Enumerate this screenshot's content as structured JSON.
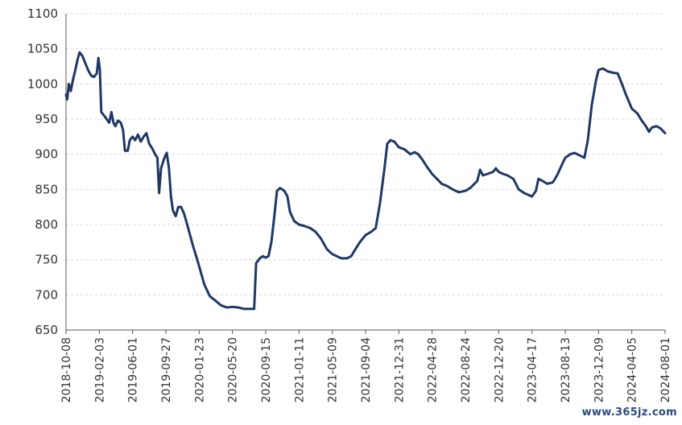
{
  "chart_data": {
    "type": "line",
    "title": "",
    "xlabel": "",
    "ylabel": "",
    "ylim": [
      650,
      1100
    ],
    "yticks": [
      650,
      700,
      750,
      800,
      850,
      900,
      950,
      1000,
      1050,
      1100
    ],
    "xlim": [
      "2018-10-08",
      "2024-08-01"
    ],
    "xtick_labels": [
      "2018-10-08",
      "2019-02-03",
      "2019-06-01",
      "2019-09-27",
      "2020-01-23",
      "2020-05-20",
      "2020-09-15",
      "2021-01-11",
      "2021-05-09",
      "2021-09-04",
      "2021-12-31",
      "2022-04-28",
      "2022-08-24",
      "2022-12-20",
      "2023-04-17",
      "2023-08-13",
      "2023-12-09",
      "2024-04-05",
      "2024-08-01"
    ],
    "grid": true,
    "legend": "none",
    "colors": {
      "line": "#1f3864",
      "grid": "#d9d9d9",
      "axis": "#595959"
    },
    "series": [
      {
        "points": [
          [
            "2018-10-08",
            985
          ],
          [
            "2018-10-12",
            978
          ],
          [
            "2018-10-18",
            1000
          ],
          [
            "2018-10-25",
            990
          ],
          [
            "2018-11-01",
            1005
          ],
          [
            "2018-11-10",
            1020
          ],
          [
            "2018-11-18",
            1035
          ],
          [
            "2018-11-25",
            1045
          ],
          [
            "2018-12-05",
            1040
          ],
          [
            "2018-12-15",
            1030
          ],
          [
            "2018-12-25",
            1020
          ],
          [
            "2019-01-05",
            1012
          ],
          [
            "2019-01-15",
            1010
          ],
          [
            "2019-01-25",
            1015
          ],
          [
            "2019-01-31",
            1037
          ],
          [
            "2019-02-05",
            1020
          ],
          [
            "2019-02-10",
            960
          ],
          [
            "2019-02-20",
            955
          ],
          [
            "2019-03-01",
            950
          ],
          [
            "2019-03-10",
            945
          ],
          [
            "2019-03-18",
            960
          ],
          [
            "2019-03-25",
            945
          ],
          [
            "2019-04-01",
            940
          ],
          [
            "2019-04-10",
            948
          ],
          [
            "2019-04-20",
            945
          ],
          [
            "2019-04-28",
            935
          ],
          [
            "2019-05-05",
            905
          ],
          [
            "2019-05-15",
            905
          ],
          [
            "2019-05-22",
            920
          ],
          [
            "2019-06-01",
            925
          ],
          [
            "2019-06-10",
            920
          ],
          [
            "2019-06-20",
            928
          ],
          [
            "2019-06-30",
            918
          ],
          [
            "2019-07-10",
            925
          ],
          [
            "2019-07-20",
            930
          ],
          [
            "2019-07-30",
            915
          ],
          [
            "2019-08-10",
            908
          ],
          [
            "2019-08-20",
            900
          ],
          [
            "2019-08-28",
            895
          ],
          [
            "2019-09-03",
            845
          ],
          [
            "2019-09-10",
            880
          ],
          [
            "2019-09-20",
            893
          ],
          [
            "2019-09-30",
            902
          ],
          [
            "2019-10-08",
            880
          ],
          [
            "2019-10-15",
            840
          ],
          [
            "2019-10-22",
            820
          ],
          [
            "2019-11-01",
            812
          ],
          [
            "2019-11-10",
            825
          ],
          [
            "2019-11-20",
            825
          ],
          [
            "2019-12-01",
            815
          ],
          [
            "2019-12-15",
            795
          ],
          [
            "2020-01-01",
            770
          ],
          [
            "2020-01-20",
            745
          ],
          [
            "2020-02-10",
            715
          ],
          [
            "2020-03-01",
            698
          ],
          [
            "2020-03-20",
            692
          ],
          [
            "2020-04-10",
            685
          ],
          [
            "2020-05-01",
            682
          ],
          [
            "2020-05-20",
            683
          ],
          [
            "2020-06-10",
            682
          ],
          [
            "2020-07-01",
            680
          ],
          [
            "2020-07-20",
            680
          ],
          [
            "2020-08-05",
            680
          ],
          [
            "2020-08-12",
            745
          ],
          [
            "2020-08-25",
            752
          ],
          [
            "2020-09-05",
            755
          ],
          [
            "2020-09-15",
            753
          ],
          [
            "2020-09-25",
            755
          ],
          [
            "2020-10-05",
            775
          ],
          [
            "2020-10-15",
            810
          ],
          [
            "2020-10-25",
            848
          ],
          [
            "2020-11-05",
            852
          ],
          [
            "2020-11-20",
            848
          ],
          [
            "2020-12-01",
            840
          ],
          [
            "2020-12-10",
            818
          ],
          [
            "2020-12-25",
            805
          ],
          [
            "2021-01-11",
            800
          ],
          [
            "2021-01-30",
            798
          ],
          [
            "2021-02-20",
            795
          ],
          [
            "2021-03-10",
            790
          ],
          [
            "2021-03-30",
            780
          ],
          [
            "2021-04-20",
            765
          ],
          [
            "2021-05-09",
            758
          ],
          [
            "2021-05-25",
            755
          ],
          [
            "2021-06-10",
            752
          ],
          [
            "2021-06-30",
            752
          ],
          [
            "2021-07-15",
            755
          ],
          [
            "2021-07-30",
            765
          ],
          [
            "2021-08-15",
            775
          ],
          [
            "2021-09-04",
            785
          ],
          [
            "2021-09-25",
            790
          ],
          [
            "2021-10-10",
            795
          ],
          [
            "2021-10-25",
            830
          ],
          [
            "2021-11-10",
            880
          ],
          [
            "2021-11-20",
            915
          ],
          [
            "2021-12-01",
            920
          ],
          [
            "2021-12-15",
            918
          ],
          [
            "2021-12-31",
            910
          ],
          [
            "2022-01-20",
            907
          ],
          [
            "2022-02-10",
            900
          ],
          [
            "2022-02-25",
            903
          ],
          [
            "2022-03-10",
            900
          ],
          [
            "2022-03-25",
            892
          ],
          [
            "2022-04-10",
            882
          ],
          [
            "2022-04-28",
            872
          ],
          [
            "2022-05-15",
            865
          ],
          [
            "2022-06-01",
            858
          ],
          [
            "2022-06-20",
            855
          ],
          [
            "2022-07-10",
            850
          ],
          [
            "2022-08-01",
            846
          ],
          [
            "2022-08-24",
            848
          ],
          [
            "2022-09-10",
            852
          ],
          [
            "2022-09-25",
            858
          ],
          [
            "2022-10-05",
            862
          ],
          [
            "2022-10-15",
            878
          ],
          [
            "2022-10-25",
            870
          ],
          [
            "2022-11-10",
            872
          ],
          [
            "2022-11-30",
            875
          ],
          [
            "2022-12-10",
            880
          ],
          [
            "2022-12-20",
            875
          ],
          [
            "2023-01-05",
            872
          ],
          [
            "2023-01-20",
            870
          ],
          [
            "2023-02-10",
            865
          ],
          [
            "2023-03-01",
            850
          ],
          [
            "2023-03-20",
            845
          ],
          [
            "2023-04-17",
            840
          ],
          [
            "2023-05-01",
            848
          ],
          [
            "2023-05-10",
            865
          ],
          [
            "2023-05-25",
            862
          ],
          [
            "2023-06-10",
            858
          ],
          [
            "2023-06-30",
            860
          ],
          [
            "2023-07-15",
            870
          ],
          [
            "2023-08-01",
            885
          ],
          [
            "2023-08-13",
            895
          ],
          [
            "2023-08-30",
            900
          ],
          [
            "2023-09-15",
            902
          ],
          [
            "2023-10-05",
            898
          ],
          [
            "2023-10-20",
            895
          ],
          [
            "2023-11-01",
            920
          ],
          [
            "2023-11-15",
            970
          ],
          [
            "2023-11-30",
            1005
          ],
          [
            "2023-12-09",
            1020
          ],
          [
            "2023-12-25",
            1022
          ],
          [
            "2024-01-10",
            1018
          ],
          [
            "2024-01-30",
            1016
          ],
          [
            "2024-02-15",
            1015
          ],
          [
            "2024-03-01",
            1000
          ],
          [
            "2024-03-15",
            985
          ],
          [
            "2024-04-05",
            965
          ],
          [
            "2024-04-25",
            958
          ],
          [
            "2024-05-10",
            948
          ],
          [
            "2024-05-25",
            940
          ],
          [
            "2024-06-05",
            932
          ],
          [
            "2024-06-15",
            938
          ],
          [
            "2024-07-01",
            940
          ],
          [
            "2024-07-15",
            937
          ],
          [
            "2024-08-01",
            930
          ]
        ]
      }
    ]
  },
  "watermark": "www.365jz.com"
}
